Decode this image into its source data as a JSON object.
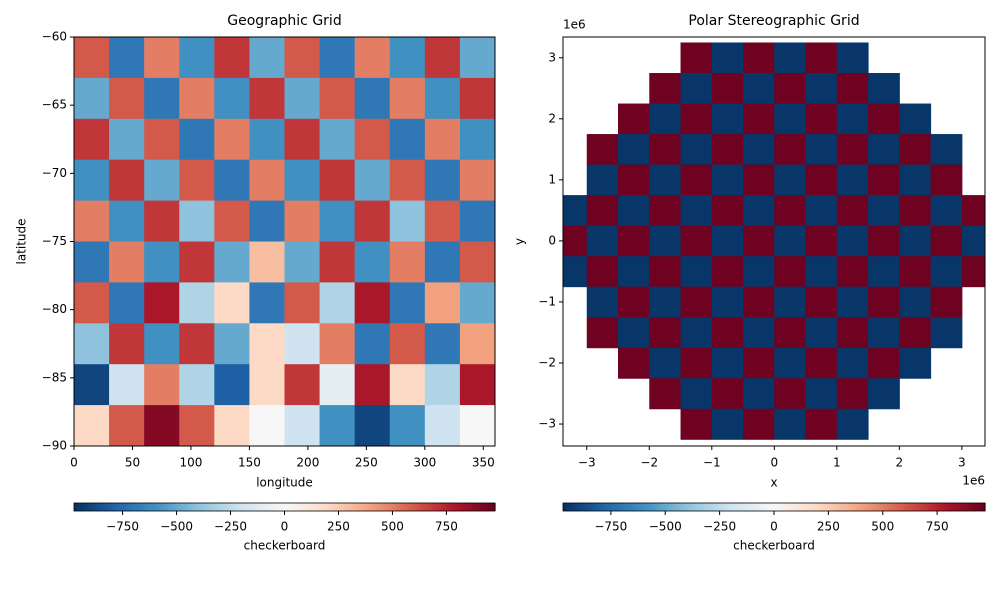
{
  "chart_data": [
    {
      "type": "heatmap",
      "title": "Geographic Grid",
      "xlabel": "longitude",
      "ylabel": "latitude",
      "x": [
        15,
        45,
        75,
        105,
        135,
        165,
        195,
        225,
        255,
        285,
        315,
        345
      ],
      "y": [
        -61.5,
        -64.5,
        -67.5,
        -70.5,
        -73.5,
        -76.5,
        -79.5,
        -82.5,
        -85.5,
        -88.5
      ],
      "z": [
        [
          600,
          -700,
          500,
          -600,
          700,
          -500,
          600,
          -700,
          500,
          -600,
          700,
          -500
        ],
        [
          -500,
          600,
          -700,
          500,
          -600,
          700,
          -500,
          600,
          -700,
          500,
          -600,
          700
        ],
        [
          700,
          -500,
          600,
          -700,
          500,
          -600,
          700,
          -500,
          600,
          -700,
          500,
          -600
        ],
        [
          -600,
          700,
          -500,
          600,
          -700,
          500,
          -600,
          700,
          -500,
          600,
          -700,
          500
        ],
        [
          500,
          -600,
          700,
          -400,
          600,
          -700,
          500,
          -600,
          700,
          -400,
          600,
          -700
        ],
        [
          -700,
          500,
          -600,
          700,
          -500,
          300,
          -500,
          700,
          -600,
          500,
          -700,
          600
        ],
        [
          600,
          -700,
          800,
          -300,
          200,
          -700,
          600,
          -300,
          800,
          -700,
          400,
          -500
        ],
        [
          -400,
          700,
          -600,
          700,
          -500,
          200,
          -200,
          500,
          -700,
          600,
          -700,
          400
        ],
        [
          -900,
          -200,
          500,
          -300,
          -800,
          200,
          700,
          -100,
          800,
          200,
          -300,
          800
        ],
        [
          200,
          600,
          900,
          600,
          200,
          0,
          -200,
          -600,
          -900,
          -600,
          -200,
          0
        ]
      ],
      "xlim": [
        0,
        360
      ],
      "ylim": [
        -90,
        -60
      ],
      "xticks": [
        0,
        50,
        100,
        150,
        200,
        250,
        300,
        350
      ],
      "yticks": [
        {
          "value": -90,
          "label": "−90"
        },
        {
          "value": -85,
          "label": "−85"
        },
        {
          "value": -80,
          "label": "−80"
        },
        {
          "value": -75,
          "label": "−75"
        },
        {
          "value": -70,
          "label": "−70"
        },
        {
          "value": -65,
          "label": "−65"
        },
        {
          "value": -60,
          "label": "−60"
        }
      ],
      "colormap": "RdBu_r",
      "clim": [
        -975,
        975
      ],
      "colorbar": {
        "label": "checkerboard",
        "ticks": [
          {
            "value": -750,
            "label": "−750"
          },
          {
            "value": -500,
            "label": "−500"
          },
          {
            "value": -250,
            "label": "−250"
          },
          0,
          250,
          500,
          750
        ]
      }
    },
    {
      "type": "heatmap",
      "title": "Polar Stereographic Grid",
      "xlabel": "x",
      "ylabel": "y",
      "x_offset_label": "1e6",
      "y_offset_label": "1e6",
      "x": [
        -3.25,
        -2.75,
        -2.25,
        -1.75,
        -1.25,
        -0.75,
        -0.25,
        0.25,
        0.75,
        1.25,
        1.75,
        2.25,
        2.75,
        3.25
      ],
      "y": [
        3,
        2.5,
        2,
        1.5,
        1,
        0.5,
        0,
        -0.5,
        -1,
        -1.5,
        -2,
        -2.5,
        -3
      ],
      "z": [
        [
          null,
          null,
          null,
          null,
          950,
          -950,
          950,
          -950,
          950,
          -950,
          null,
          null,
          null,
          null
        ],
        [
          null,
          null,
          null,
          950,
          -950,
          950,
          -950,
          950,
          -950,
          950,
          -950,
          null,
          null,
          null
        ],
        [
          null,
          null,
          950,
          -950,
          950,
          -950,
          950,
          -950,
          950,
          -950,
          950,
          -950,
          null,
          null
        ],
        [
          null,
          950,
          -950,
          950,
          -950,
          950,
          -950,
          950,
          -950,
          950,
          -950,
          950,
          -950,
          null
        ],
        [
          null,
          -950,
          950,
          -950,
          950,
          -950,
          950,
          -950,
          950,
          -950,
          950,
          -950,
          950,
          null
        ],
        [
          -950,
          950,
          -950,
          950,
          -950,
          950,
          -950,
          950,
          -950,
          950,
          -950,
          950,
          -950,
          950
        ],
        [
          950,
          -950,
          950,
          -950,
          950,
          -950,
          950,
          -950,
          950,
          -950,
          950,
          -950,
          950,
          -950
        ],
        [
          -950,
          950,
          -950,
          950,
          -950,
          950,
          -950,
          950,
          -950,
          950,
          -950,
          950,
          -950,
          950
        ],
        [
          null,
          -950,
          950,
          -950,
          950,
          -950,
          950,
          -950,
          950,
          -950,
          950,
          -950,
          950,
          null
        ],
        [
          null,
          950,
          -950,
          950,
          -950,
          950,
          -950,
          950,
          -950,
          950,
          -950,
          950,
          -950,
          null
        ],
        [
          null,
          null,
          950,
          -950,
          950,
          -950,
          950,
          -950,
          950,
          -950,
          950,
          -950,
          null,
          null
        ],
        [
          null,
          null,
          null,
          950,
          -950,
          950,
          -950,
          950,
          -950,
          950,
          -950,
          null,
          null,
          null
        ],
        [
          null,
          null,
          null,
          null,
          950,
          -950,
          950,
          -950,
          950,
          -950,
          null,
          null,
          null,
          null
        ]
      ],
      "xlim": [
        -3.38,
        3.37
      ],
      "ylim": [
        -3.36,
        3.34
      ],
      "xticks": [
        {
          "value": -3,
          "label": "−3"
        },
        {
          "value": -2,
          "label": "−2"
        },
        {
          "value": -1,
          "label": "−1"
        },
        0,
        1,
        2,
        3
      ],
      "yticks": [
        {
          "value": -3,
          "label": "−3"
        },
        {
          "value": -2,
          "label": "−2"
        },
        {
          "value": -1,
          "label": "−1"
        },
        0,
        1,
        2,
        3
      ],
      "colormap": "RdBu_r",
      "clim": [
        -970,
        970
      ],
      "colorbar": {
        "label": "checkerboard",
        "ticks": [
          {
            "value": -750,
            "label": "−750"
          },
          {
            "value": -500,
            "label": "−500"
          },
          {
            "value": -250,
            "label": "−250"
          },
          0,
          250,
          500,
          750
        ]
      }
    }
  ]
}
